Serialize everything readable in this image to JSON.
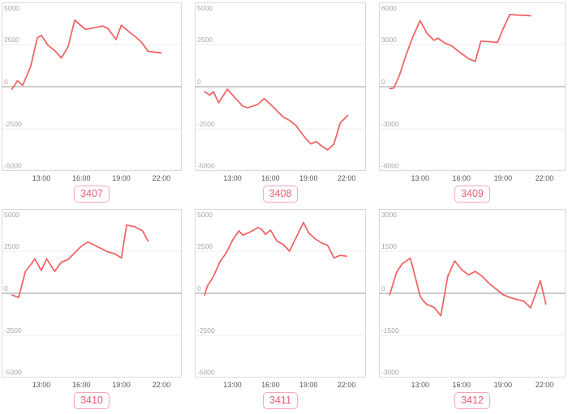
{
  "page": {
    "background": "#ffffff"
  },
  "styles": {
    "line_color": "#f15f5f",
    "zero_line_color": "#cccccc",
    "grid_color": "#ededed",
    "panel_border_color": "#d9d9d9",
    "y_label_color": "#a6a6a6",
    "x_label_color": "#555555",
    "badge_border_color": "#f5a6b8",
    "badge_text_color": "#ea5d78"
  },
  "chart_data": [
    {
      "type": "line",
      "badge": "3407",
      "xlim": [
        10.05,
        23.5
      ],
      "ylim": [
        -5000,
        5000
      ],
      "y_ticks": [
        5000,
        2500,
        0,
        -2500,
        -5000
      ],
      "x_ticks": [
        {
          "hour": 13,
          "label": "13:00"
        },
        {
          "hour": 16,
          "label": "16:00"
        },
        {
          "hour": 19,
          "label": "19:00"
        },
        {
          "hour": 22,
          "label": "22:00"
        }
      ],
      "grid": true,
      "legend": "none",
      "points": [
        [
          10.8,
          -150
        ],
        [
          11.2,
          350
        ],
        [
          11.6,
          80
        ],
        [
          12.2,
          1200
        ],
        [
          12.7,
          2900
        ],
        [
          13,
          3050
        ],
        [
          13.5,
          2450
        ],
        [
          14,
          2150
        ],
        [
          14.5,
          1700
        ],
        [
          15,
          2350
        ],
        [
          15.5,
          3950
        ],
        [
          16.3,
          3400
        ],
        [
          17,
          3500
        ],
        [
          17.6,
          3600
        ],
        [
          18,
          3450
        ],
        [
          18.6,
          2800
        ],
        [
          19,
          3650
        ],
        [
          19.5,
          3300
        ],
        [
          20,
          3000
        ],
        [
          20.5,
          2650
        ],
        [
          21,
          2100
        ],
        [
          21.5,
          2050
        ],
        [
          22,
          2000
        ]
      ]
    },
    {
      "type": "line",
      "badge": "3408",
      "xlim": [
        10.05,
        23.5
      ],
      "ylim": [
        -5000,
        5000
      ],
      "y_ticks": [
        5000,
        2500,
        0,
        -2500,
        -5000
      ],
      "x_ticks": [
        {
          "hour": 13,
          "label": "13:00"
        },
        {
          "hour": 16,
          "label": "16:00"
        },
        {
          "hour": 19,
          "label": "19:00"
        },
        {
          "hour": 22,
          "label": "22:00"
        }
      ],
      "grid": true,
      "legend": "none",
      "points": [
        [
          10.8,
          -300
        ],
        [
          11.2,
          -500
        ],
        [
          11.5,
          -300
        ],
        [
          11.9,
          -950
        ],
        [
          12.6,
          -150
        ],
        [
          13,
          -500
        ],
        [
          13.8,
          -1150
        ],
        [
          14.2,
          -1250
        ],
        [
          15,
          -1050
        ],
        [
          15.5,
          -700
        ],
        [
          16,
          -1050
        ],
        [
          17,
          -1800
        ],
        [
          17.5,
          -2000
        ],
        [
          18,
          -2300
        ],
        [
          18.8,
          -3100
        ],
        [
          19.2,
          -3400
        ],
        [
          19.6,
          -3250
        ],
        [
          20,
          -3500
        ],
        [
          20.5,
          -3750
        ],
        [
          21,
          -3400
        ],
        [
          21.5,
          -2150
        ],
        [
          22.1,
          -1700
        ]
      ]
    },
    {
      "type": "line",
      "badge": "3409",
      "xlim": [
        10.05,
        23.5
      ],
      "ylim": [
        -6000,
        6000
      ],
      "y_ticks": [
        6000,
        3000,
        0,
        -3000,
        -6000
      ],
      "x_ticks": [
        {
          "hour": 13,
          "label": "13:00"
        },
        {
          "hour": 16,
          "label": "16:00"
        },
        {
          "hour": 19,
          "label": "19:00"
        },
        {
          "hour": 22,
          "label": "22:00"
        }
      ],
      "grid": true,
      "legend": "none",
      "points": [
        [
          10.8,
          -150
        ],
        [
          11.1,
          -100
        ],
        [
          11.5,
          800
        ],
        [
          12,
          2300
        ],
        [
          12.5,
          3600
        ],
        [
          13,
          4700
        ],
        [
          13.5,
          3800
        ],
        [
          14,
          3300
        ],
        [
          14.3,
          3450
        ],
        [
          14.8,
          3100
        ],
        [
          15.3,
          2900
        ],
        [
          15.8,
          2500
        ],
        [
          16.5,
          2000
        ],
        [
          17,
          1800
        ],
        [
          17.4,
          3250
        ],
        [
          18,
          3200
        ],
        [
          18.6,
          3150
        ],
        [
          19,
          4100
        ],
        [
          19.5,
          5150
        ],
        [
          20,
          5100
        ],
        [
          20.5,
          5080
        ],
        [
          21,
          5050
        ]
      ]
    },
    {
      "type": "line",
      "badge": "3410",
      "xlim": [
        10.05,
        23.5
      ],
      "ylim": [
        -5000,
        5000
      ],
      "y_ticks": [
        5000,
        2500,
        0,
        -2500,
        -5000
      ],
      "x_ticks": [
        {
          "hour": 13,
          "label": "13:00"
        },
        {
          "hour": 16,
          "label": "16:00"
        },
        {
          "hour": 19,
          "label": "19:00"
        },
        {
          "hour": 22,
          "label": "22:00"
        }
      ],
      "grid": true,
      "legend": "none",
      "points": [
        [
          10.8,
          -100
        ],
        [
          11.3,
          -250
        ],
        [
          11.8,
          1300
        ],
        [
          12.3,
          1800
        ],
        [
          12.5,
          2050
        ],
        [
          13,
          1350
        ],
        [
          13.4,
          2050
        ],
        [
          14,
          1300
        ],
        [
          14.5,
          1850
        ],
        [
          15,
          2000
        ],
        [
          16,
          2800
        ],
        [
          16.5,
          3050
        ],
        [
          17,
          2850
        ],
        [
          17.5,
          2650
        ],
        [
          18,
          2450
        ],
        [
          18.5,
          2350
        ],
        [
          19,
          2100
        ],
        [
          19.4,
          4050
        ],
        [
          20,
          3950
        ],
        [
          20.6,
          3700
        ],
        [
          21,
          3100
        ]
      ]
    },
    {
      "type": "line",
      "badge": "3411",
      "xlim": [
        10.05,
        23.5
      ],
      "ylim": [
        -5000,
        5000
      ],
      "y_ticks": [
        5000,
        2500,
        0,
        -2500,
        -5000
      ],
      "x_ticks": [
        {
          "hour": 13,
          "label": "13:00"
        },
        {
          "hour": 16,
          "label": "16:00"
        },
        {
          "hour": 19,
          "label": "19:00"
        },
        {
          "hour": 22,
          "label": "22:00"
        }
      ],
      "grid": true,
      "legend": "none",
      "points": [
        [
          10.8,
          -100
        ],
        [
          11,
          400
        ],
        [
          11.5,
          1000
        ],
        [
          12,
          1850
        ],
        [
          12.5,
          2400
        ],
        [
          13,
          3150
        ],
        [
          13.5,
          3700
        ],
        [
          13.8,
          3450
        ],
        [
          14.3,
          3600
        ],
        [
          15,
          3900
        ],
        [
          15.3,
          3800
        ],
        [
          15.6,
          3500
        ],
        [
          16,
          3750
        ],
        [
          16.5,
          3100
        ],
        [
          17,
          2900
        ],
        [
          17.5,
          2500
        ],
        [
          18.6,
          4200
        ],
        [
          19,
          3600
        ],
        [
          19.5,
          3250
        ],
        [
          20,
          3000
        ],
        [
          20.5,
          2850
        ],
        [
          21,
          2100
        ],
        [
          21.5,
          2250
        ],
        [
          22,
          2200
        ]
      ]
    },
    {
      "type": "line",
      "badge": "3412",
      "xlim": [
        10.05,
        23.5
      ],
      "ylim": [
        -3000,
        3000
      ],
      "y_ticks": [
        3000,
        1500,
        0,
        -1500,
        -3000
      ],
      "x_ticks": [
        {
          "hour": 13,
          "label": "13:00"
        },
        {
          "hour": 16,
          "label": "16:00"
        },
        {
          "hour": 19,
          "label": "19:00"
        },
        {
          "hour": 22,
          "label": "22:00"
        }
      ],
      "grid": true,
      "legend": "none",
      "points": [
        [
          10.8,
          -50
        ],
        [
          11.3,
          750
        ],
        [
          11.7,
          1050
        ],
        [
          12,
          1150
        ],
        [
          12.3,
          1250
        ],
        [
          13,
          -100
        ],
        [
          13.2,
          -250
        ],
        [
          13.5,
          -400
        ],
        [
          14,
          -500
        ],
        [
          14.5,
          -800
        ],
        [
          15,
          600
        ],
        [
          15.5,
          1150
        ],
        [
          16,
          850
        ],
        [
          16.5,
          650
        ],
        [
          17,
          780
        ],
        [
          17.5,
          600
        ],
        [
          18,
          350
        ],
        [
          18.5,
          150
        ],
        [
          19,
          -50
        ],
        [
          19.5,
          -150
        ],
        [
          20,
          -220
        ],
        [
          20.5,
          -280
        ],
        [
          21,
          -520
        ],
        [
          21.7,
          450
        ],
        [
          22.1,
          -380
        ]
      ]
    }
  ]
}
